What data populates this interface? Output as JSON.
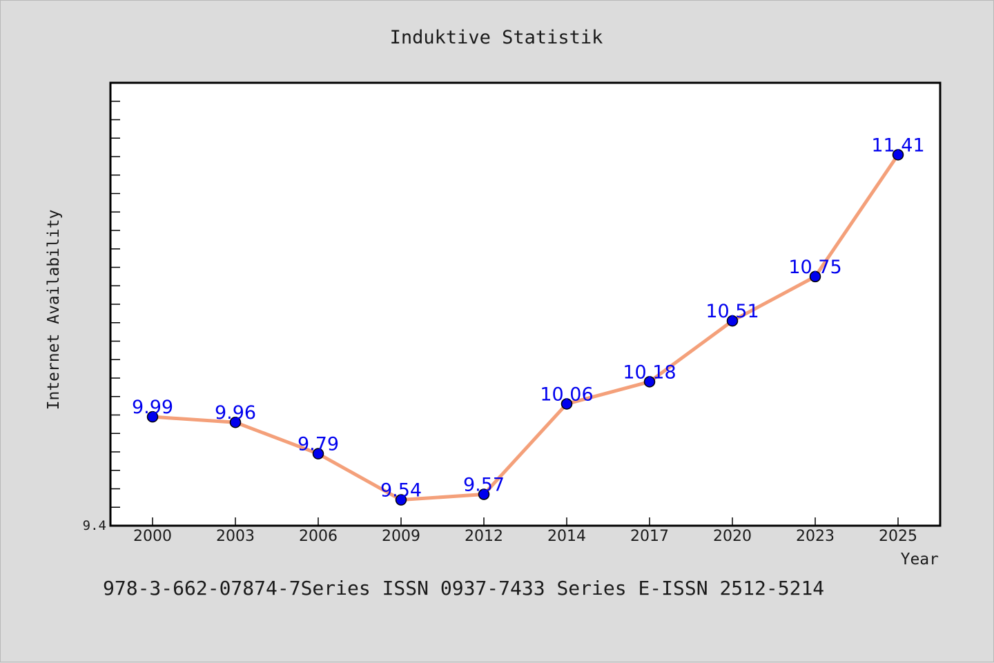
{
  "colors": {
    "background": "#dcdcdc",
    "plot_background": "#ffffff",
    "line": "#f4a07a",
    "marker": "#0000ee",
    "data_label": "#0000ee",
    "text": "#1a1a1a"
  },
  "footer_text": "978-3-662-07874-7Series ISSN 0937-7433 Series E-ISSN 2512-5214",
  "chart_data": {
    "type": "line",
    "title": "Induktive Statistik",
    "xlabel": "Year",
    "ylabel": "Internet Availability",
    "categories": [
      "2000",
      "2003",
      "2006",
      "2009",
      "2012",
      "2014",
      "2017",
      "2020",
      "2023",
      "2025"
    ],
    "series": [
      {
        "values": [
          9.99,
          9.96,
          9.79,
          9.54,
          9.57,
          10.06,
          10.18,
          10.51,
          10.75,
          11.41
        ]
      }
    ],
    "data_labels": [
      "9.99",
      "9.96",
      "9.79",
      "9.54",
      "9.57",
      "10.06",
      "10.18",
      "10.51",
      "10.75",
      "11.41"
    ],
    "ylim": [
      9.4,
      11.8
    ],
    "ytick_labels": [
      "9.4"
    ],
    "grid": false,
    "legend": "none"
  }
}
